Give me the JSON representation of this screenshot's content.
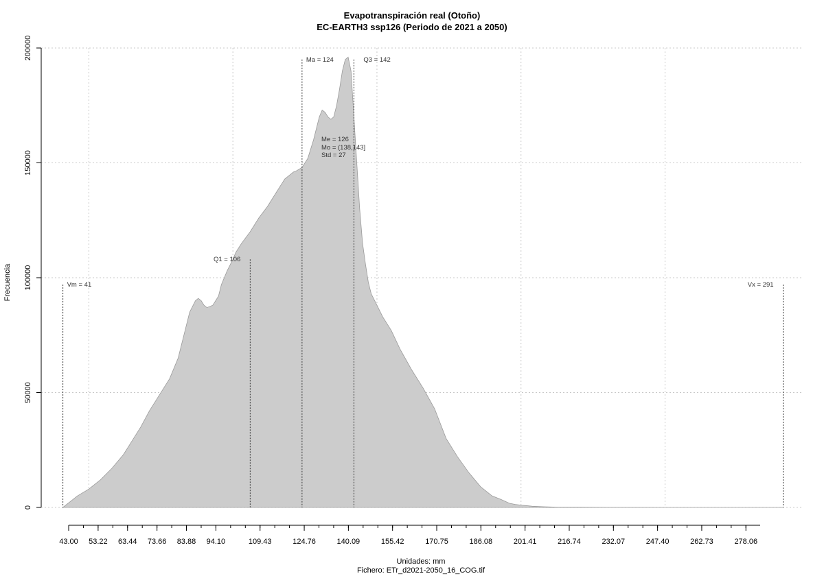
{
  "chart_data": {
    "type": "area",
    "title": "Evapotranspiración real (Otoño)",
    "subtitle": "EC-EARTH3 ssp126 (Periodo de 2021 a 2050)",
    "xlabel": "Unidades: mm",
    "ylabel": "Frecuencia",
    "caption": "Fichero: ETr_d2021-2050_16_COG.tif",
    "xlim": [
      43.0,
      283.0
    ],
    "ylim": [
      0,
      200000
    ],
    "x_ticks": [
      "43.00",
      "53.22",
      "63.44",
      "73.66",
      "83.88",
      "94.10",
      "109.43",
      "124.76",
      "140.09",
      "155.42",
      "170.75",
      "186.08",
      "201.41",
      "216.74",
      "232.07",
      "247.40",
      "262.73",
      "278.06"
    ],
    "y_ticks": [
      "0",
      "50000",
      "100000",
      "150000",
      "200000"
    ],
    "grid": true,
    "fill_color": "#cccccc",
    "series": [
      {
        "x": [
          41,
          43,
          46,
          50,
          54,
          58,
          62,
          65,
          68,
          71,
          74,
          78,
          81,
          83,
          85,
          87,
          88,
          89,
          90,
          91,
          93,
          95,
          96,
          98,
          100,
          101,
          103,
          106,
          109,
          112,
          115,
          117,
          118,
          120,
          121,
          122,
          124,
          126,
          128,
          130,
          131,
          132,
          133,
          134,
          135,
          136,
          137,
          138,
          139,
          140,
          141,
          142,
          143,
          144,
          145,
          146,
          147,
          148,
          150,
          152,
          155,
          158,
          162,
          166,
          170,
          174,
          178,
          182,
          186,
          190,
          193,
          196,
          198,
          200,
          204,
          208,
          212,
          220,
          230,
          240,
          250,
          260,
          270,
          280,
          286,
          291
        ],
        "y": [
          0,
          2000,
          5000,
          8000,
          12000,
          17000,
          23000,
          29000,
          35000,
          42000,
          48000,
          56000,
          65000,
          75000,
          85000,
          90000,
          91000,
          90000,
          88000,
          87000,
          88000,
          92000,
          97000,
          103000,
          108000,
          111000,
          115000,
          120000,
          126000,
          131000,
          137000,
          141000,
          143000,
          145000,
          146000,
          146500,
          148000,
          152000,
          160000,
          170000,
          173000,
          172000,
          170000,
          169000,
          170000,
          175000,
          182000,
          190000,
          195000,
          196000,
          190000,
          170000,
          150000,
          130000,
          115000,
          106000,
          98000,
          93000,
          88000,
          83000,
          77000,
          69000,
          60000,
          52000,
          43000,
          30000,
          22000,
          15000,
          9000,
          5000,
          3500,
          1800,
          1300,
          1000,
          500,
          300,
          150,
          80,
          40,
          20,
          10,
          5,
          2,
          0,
          0,
          0
        ]
      }
    ],
    "markers": [
      {
        "label": "Vm = 41",
        "x": 41,
        "y_top": 97000
      },
      {
        "label": "Q1 = 106",
        "x": 106,
        "y_top": 108000
      },
      {
        "label": "Ma = 124",
        "x": 124,
        "y_top": 195000
      },
      {
        "label": "Q3 = 142",
        "x": 142,
        "y_top": 195000
      },
      {
        "label": "Vx = 291",
        "x": 291,
        "y_top": 97000
      }
    ],
    "stats": [
      "Me = 126",
      "Mo = (138,143]",
      "Std = 27"
    ]
  }
}
